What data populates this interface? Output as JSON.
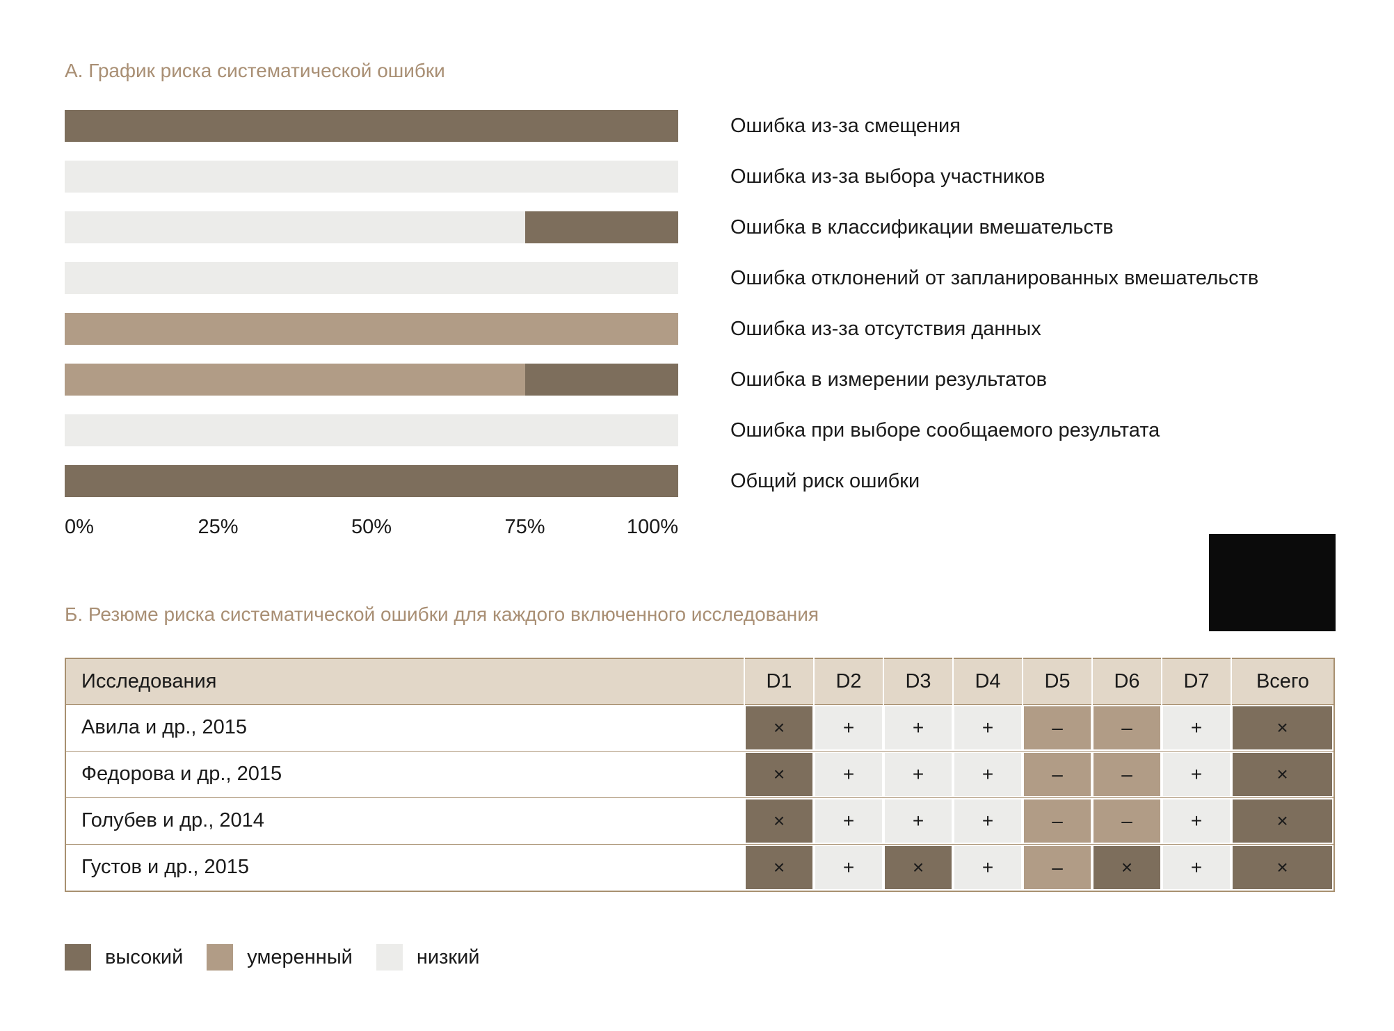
{
  "colors": {
    "high": "#7d6e5c",
    "moderate": "#b19c86",
    "low": "#ececea",
    "table_header_bg": "#e2d7c8",
    "section_title": "#a98f74",
    "table_border": "#a89070",
    "black_box": "#0b0b0b",
    "symbol": "#1a1a1a"
  },
  "chart_data": [
    {
      "type": "bar",
      "orientation": "horizontal",
      "stacked": true,
      "title": "А. График риска систематической ошибки",
      "categories": [
        "Ошибка из-за смещения",
        "Ошибка из-за выбора участников",
        "Ошибка в классификации вмешательств",
        "Ошибка отклонений от запланированных вмешательств",
        "Ошибка из-за отсутствия данных",
        "Ошибка в измерении результатов",
        "Ошибка при выборе сообщаемого результата",
        "Общий риск ошибки"
      ],
      "series": [
        {
          "name": "низкий",
          "level": "low",
          "values": [
            0,
            100,
            75,
            100,
            0,
            0,
            100,
            0
          ]
        },
        {
          "name": "умеренный",
          "level": "moderate",
          "values": [
            0,
            0,
            0,
            0,
            100,
            75,
            0,
            0
          ]
        },
        {
          "name": "высокий",
          "level": "high",
          "values": [
            100,
            0,
            25,
            0,
            0,
            25,
            0,
            100
          ]
        }
      ],
      "xlim": [
        0,
        100
      ],
      "x_ticks": [
        {
          "label": "0%",
          "value": 0
        },
        {
          "label": "25%",
          "value": 25
        },
        {
          "label": "50%",
          "value": 50
        },
        {
          "label": "75%",
          "value": 75
        },
        {
          "label": "100%",
          "value": 100
        }
      ],
      "grid": false,
      "legend_position": "bottom"
    },
    {
      "type": "table",
      "title": "Б. Резюме риска систематической ошибки для каждого включенного исследования",
      "columns": [
        "Исследования",
        "D1",
        "D2",
        "D3",
        "D4",
        "D5",
        "D6",
        "D7",
        "Всего"
      ],
      "rows": [
        {
          "study": "Авила и др., 2015",
          "cells": [
            {
              "symbol": "×",
              "level": "high"
            },
            {
              "symbol": "+",
              "level": "low"
            },
            {
              "symbol": "+",
              "level": "low"
            },
            {
              "symbol": "+",
              "level": "low"
            },
            {
              "symbol": "–",
              "level": "moderate"
            },
            {
              "symbol": "–",
              "level": "moderate"
            },
            {
              "symbol": "+",
              "level": "low"
            },
            {
              "symbol": "×",
              "level": "high"
            }
          ]
        },
        {
          "study": "Федорова и др., 2015",
          "cells": [
            {
              "symbol": "×",
              "level": "high"
            },
            {
              "symbol": "+",
              "level": "low"
            },
            {
              "symbol": "+",
              "level": "low"
            },
            {
              "symbol": "+",
              "level": "low"
            },
            {
              "symbol": "–",
              "level": "moderate"
            },
            {
              "symbol": "–",
              "level": "moderate"
            },
            {
              "symbol": "+",
              "level": "low"
            },
            {
              "symbol": "×",
              "level": "high"
            }
          ]
        },
        {
          "study": "Голубев и др., 2014",
          "cells": [
            {
              "symbol": "×",
              "level": "high"
            },
            {
              "symbol": "+",
              "level": "low"
            },
            {
              "symbol": "+",
              "level": "low"
            },
            {
              "symbol": "+",
              "level": "low"
            },
            {
              "symbol": "–",
              "level": "moderate"
            },
            {
              "symbol": "–",
              "level": "moderate"
            },
            {
              "symbol": "+",
              "level": "low"
            },
            {
              "symbol": "×",
              "level": "high"
            }
          ]
        },
        {
          "study": "Густов и др., 2015",
          "cells": [
            {
              "symbol": "×",
              "level": "high"
            },
            {
              "symbol": "+",
              "level": "low"
            },
            {
              "symbol": "×",
              "level": "high"
            },
            {
              "symbol": "+",
              "level": "low"
            },
            {
              "symbol": "–",
              "level": "moderate"
            },
            {
              "symbol": "×",
              "level": "high"
            },
            {
              "symbol": "+",
              "level": "low"
            },
            {
              "symbol": "×",
              "level": "high"
            }
          ]
        }
      ]
    }
  ],
  "legend": {
    "items": [
      {
        "label": "высокий",
        "level": "high"
      },
      {
        "label": "умеренный",
        "level": "moderate"
      },
      {
        "label": "низкий",
        "level": "low"
      }
    ]
  }
}
